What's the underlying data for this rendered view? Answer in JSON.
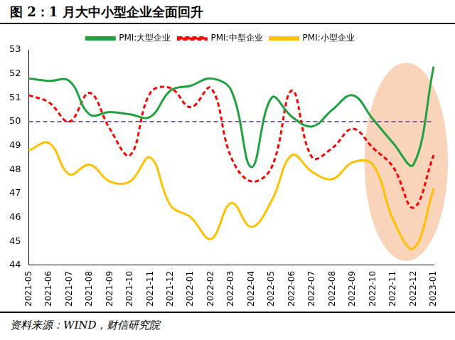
{
  "chart_data": {
    "type": "line",
    "title": "图 2：1 月大中小型企业全面回升",
    "source": "资料来源：WIND，财信研究院",
    "categories": [
      "2021-05",
      "2021-06",
      "2021-07",
      "2021-08",
      "2021-09",
      "2021-10",
      "2021-11",
      "2021-12",
      "2022-01",
      "2022-02",
      "2022-03",
      "2022-04",
      "2022-05",
      "2022-06",
      "2022-07",
      "2022-08",
      "2022-09",
      "2022-10",
      "2022-11",
      "2022-12",
      "2023-01"
    ],
    "series": [
      {
        "name": "PMI:大型企业",
        "color": "#1fa13f",
        "line_style": "solid",
        "marker": "none",
        "values": [
          51.8,
          51.7,
          51.7,
          50.3,
          50.4,
          50.3,
          50.2,
          51.3,
          51.5,
          51.8,
          51.3,
          48.1,
          51.0,
          50.2,
          49.8,
          50.5,
          51.1,
          50.1,
          49.1,
          48.2,
          52.3
        ]
      },
      {
        "name": "PMI:中型企业",
        "color": "#ff0000",
        "line_style": "dashed",
        "marker": "none",
        "values": [
          51.1,
          50.8,
          50.0,
          51.2,
          49.7,
          48.6,
          51.2,
          51.4,
          50.6,
          51.4,
          48.5,
          47.5,
          48.1,
          51.3,
          48.5,
          48.9,
          49.7,
          48.9,
          48.1,
          46.4,
          48.6
        ]
      },
      {
        "name": "PMI:小型企业",
        "color": "#ffc000",
        "line_style": "solid",
        "marker": "none",
        "values": [
          48.8,
          49.1,
          47.8,
          48.2,
          47.5,
          47.5,
          48.5,
          46.5,
          46.0,
          45.1,
          46.6,
          45.6,
          46.7,
          48.6,
          47.9,
          47.6,
          48.3,
          48.2,
          45.9,
          44.7,
          47.2
        ]
      },
      {
        "color": "#8064a2",
        "line_style": "dashed",
        "marker": "none",
        "values": [
          50,
          50,
          50,
          50,
          50,
          50,
          50,
          50,
          50,
          50,
          50,
          50,
          50,
          50,
          50,
          50,
          50,
          50,
          50,
          50,
          50
        ]
      }
    ],
    "ylim": [
      44,
      53
    ],
    "yticks": [
      44,
      45,
      46,
      47,
      48,
      49,
      50,
      51,
      52,
      53
    ],
    "grid": false,
    "legend": "top"
  }
}
